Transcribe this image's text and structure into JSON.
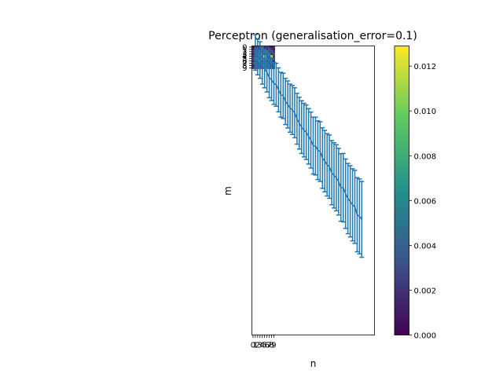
{
  "chart_data": [
    {
      "type": "line",
      "subtype": "errorbar-with-heatmap",
      "title": "Perceptron (generalisation_error=0.1)",
      "xlabel": "n",
      "ylabel": "m",
      "x_tick_labels": [
        "0",
        "1",
        "2",
        "3",
        "4",
        "5",
        "6",
        "7",
        "8",
        "9"
      ],
      "y_tick_labels": [
        "0",
        "1",
        "2",
        "3",
        "4",
        "5",
        "6",
        "7",
        "8",
        "9"
      ],
      "y_inverted": true,
      "series": [
        {
          "color": "#1f77b4",
          "x": [
            1,
            2,
            3,
            4,
            5,
            6,
            7,
            8,
            9,
            10,
            11,
            12,
            13,
            14,
            15,
            16,
            17,
            18,
            19,
            20,
            21,
            22,
            23,
            24,
            25,
            26,
            27,
            28,
            29,
            30,
            31,
            32,
            33,
            34,
            35,
            36,
            37,
            38,
            39,
            40,
            41,
            42,
            43,
            44,
            45,
            46,
            47
          ],
          "y": [
            2.3,
            4.3,
            5.6,
            7.9,
            9.3,
            10.9,
            13.2,
            14.2,
            15.7,
            16.3,
            18.5,
            20.6,
            21.1,
            23.5,
            24.8,
            26.4,
            27.2,
            28.4,
            31.0,
            32.9,
            34.6,
            35.9,
            36.8,
            38.6,
            40.2,
            42.6,
            42.8,
            44.6,
            45.2,
            48.0,
            49.3,
            50.9,
            51.7,
            54.3,
            55.5,
            56.5,
            58.2,
            60.7,
            60.8,
            63.4,
            65.5,
            66.7,
            68.2,
            69.1,
            72.5,
            73.2,
            74.5
          ],
          "yerr": [
            7.7,
            7.7,
            7.9,
            8.1,
            8.3,
            8.5,
            8.7,
            8.9,
            9.1,
            9.3,
            9.5,
            9.7,
            9.8,
            10.0,
            10.2,
            10.4,
            10.6,
            10.8,
            11.0,
            11.2,
            11.4,
            11.6,
            11.8,
            12.0,
            12.1,
            12.3,
            12.5,
            12.7,
            12.9,
            13.1,
            13.3,
            13.5,
            13.7,
            13.9,
            14.1,
            14.3,
            14.4,
            14.6,
            14.8,
            15.0,
            15.2,
            15.4,
            15.6,
            15.8,
            16.0,
            16.2,
            16.4
          ]
        }
      ],
      "heatmap": {
        "rows": 10,
        "cols": 10,
        "values": [
          [
            0.0008,
            0.0012,
            0.0005,
            0.0018,
            0.0032,
            0.0009,
            0.0024,
            0.0015,
            0.0006,
            0.0011
          ],
          [
            0.0014,
            0.0021,
            0.0035,
            0.001,
            0.0042,
            0.0028,
            0.0013,
            0.0037,
            0.002,
            0.0009
          ],
          [
            0.0022,
            0.004,
            0.003,
            0.0055,
            0.0016,
            0.0045,
            0.0065,
            0.0026,
            0.0033,
            0.0018
          ],
          [
            0.0011,
            0.0027,
            0.0048,
            0.0036,
            0.006,
            0.0021,
            0.0038,
            0.0052,
            0.0017,
            0.0025
          ],
          [
            0.0019,
            0.0034,
            0.0023,
            0.005,
            0.0029,
            0.0129,
            0.0041,
            0.0031,
            0.011,
            0.002
          ],
          [
            0.0026,
            0.0044,
            0.0058,
            0.0031,
            0.0047,
            0.0039,
            0.007,
            0.0028,
            0.0046,
            0.0022
          ],
          [
            0.0016,
            0.0025,
            0.0037,
            0.0062,
            0.0026,
            0.0053,
            0.0019,
            0.0043,
            0.0035,
            0.0014
          ],
          [
            0.003,
            0.0049,
            0.002,
            0.004,
            0.0057,
            0.0032,
            0.0046,
            0.0024,
            0.0051,
            0.0027
          ],
          [
            0.0012,
            0.0023,
            0.0043,
            0.0018,
            0.0035,
            0.0061,
            0.0027,
            0.0049,
            0.002,
            0.0033
          ],
          [
            0.0021,
            0.0036,
            0.0028,
            0.0048,
            0.0022,
            0.0041,
            0.0055,
            0.003,
            0.0042,
            0.0017
          ]
        ]
      }
    },
    {
      "type": "heatmap",
      "subtype": "colorbar",
      "colormap": "viridis",
      "range": [
        0,
        0.0129
      ],
      "tick_values": [
        0,
        0.002,
        0.004,
        0.006,
        0.008,
        0.01,
        0.012
      ],
      "tick_labels": [
        "0.000",
        "0.002",
        "0.004",
        "0.006",
        "0.008",
        "0.010",
        "0.012"
      ]
    }
  ]
}
